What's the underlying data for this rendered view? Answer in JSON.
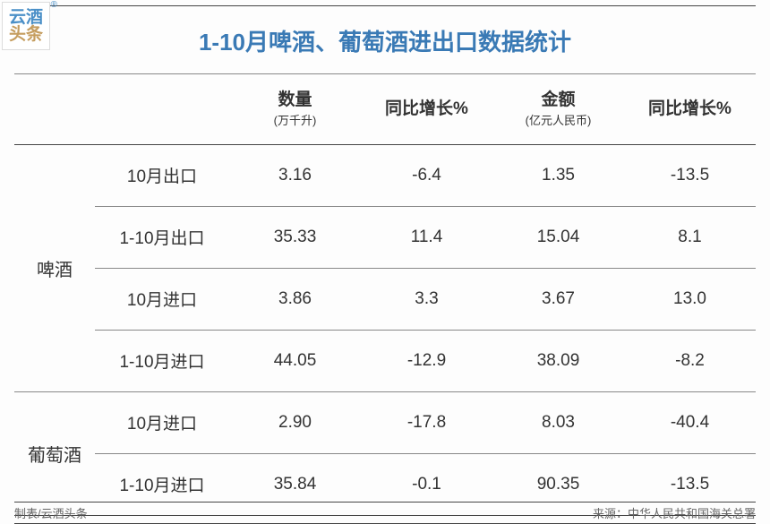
{
  "logo": {
    "top": "云酒",
    "bottom": "头条",
    "r": "®"
  },
  "title": "1-10月啤酒、葡萄酒进出口数据统计",
  "columns": {
    "qty_label": "数量",
    "qty_unit": "(万千升)",
    "qty_yoy": "同比增长%",
    "amt_label": "金额",
    "amt_unit": "(亿元人民币)",
    "amt_yoy": "同比增长%"
  },
  "groups": [
    {
      "name": "啤酒",
      "rows": [
        {
          "period": "10月出口",
          "qty": "3.16",
          "qty_yoy": "-6.4",
          "amt": "1.35",
          "amt_yoy": "-13.5"
        },
        {
          "period": "1-10月出口",
          "qty": "35.33",
          "qty_yoy": "11.4",
          "amt": "15.04",
          "amt_yoy": "8.1"
        },
        {
          "period": "10月进口",
          "qty": "3.86",
          "qty_yoy": "3.3",
          "amt": "3.67",
          "amt_yoy": "13.0"
        },
        {
          "period": "1-10月进口",
          "qty": "44.05",
          "qty_yoy": "-12.9",
          "amt": "38.09",
          "amt_yoy": "-8.2"
        }
      ]
    },
    {
      "name": "葡萄酒",
      "rows": [
        {
          "period": "10月进口",
          "qty": "2.90",
          "qty_yoy": "-17.8",
          "amt": "8.03",
          "amt_yoy": "-40.4"
        },
        {
          "period": "1-10月进口",
          "qty": "35.84",
          "qty_yoy": "-0.1",
          "amt": "90.35",
          "amt_yoy": "-13.5"
        }
      ]
    }
  ],
  "footer": {
    "left": "制表/云酒头条",
    "right": "来源：中华人民共和国海关总署"
  }
}
